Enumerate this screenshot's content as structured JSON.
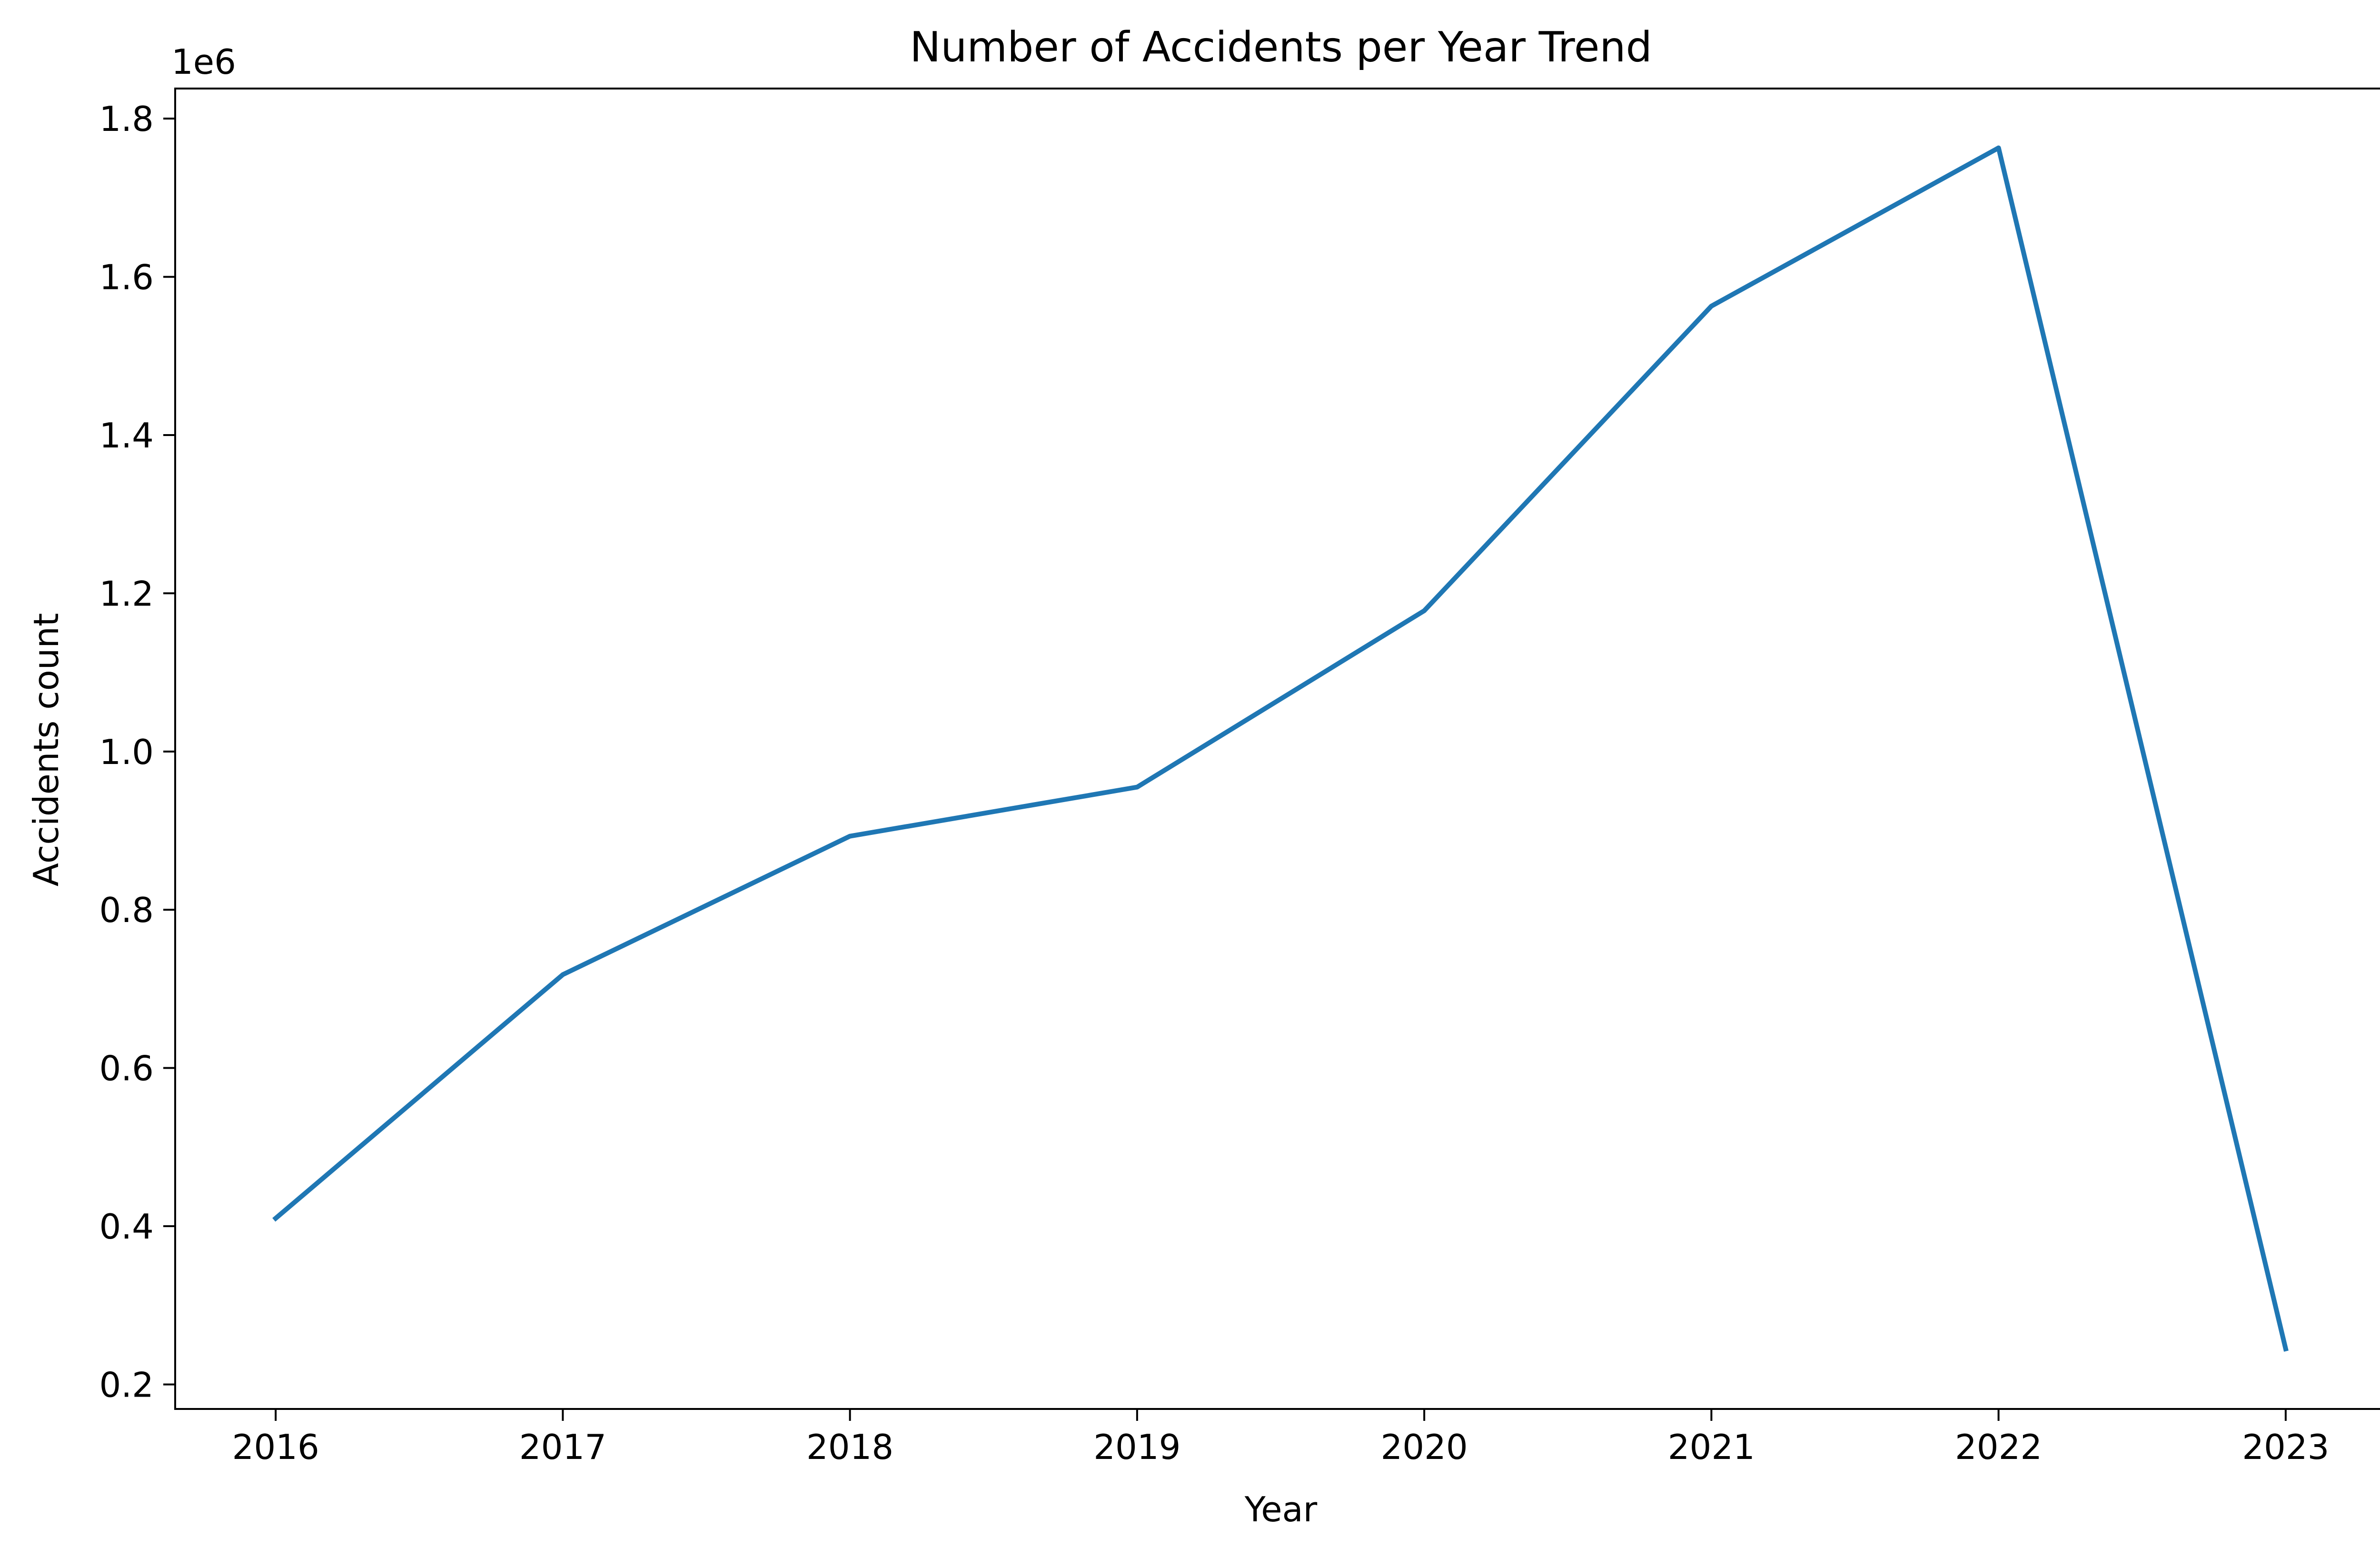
{
  "chart_data": {
    "type": "line",
    "title": "Number of Accidents per Year Trend",
    "xlabel": "Year",
    "ylabel": "Accidents count",
    "y_offset_label": "1e6",
    "x": [
      2016,
      2017,
      2018,
      2019,
      2020,
      2021,
      2022,
      2023
    ],
    "series": [
      {
        "values": [
          410000,
          718000,
          893000,
          955000,
          1178000,
          1563000,
          1763000,
          245000
        ],
        "color": "#1f77b4"
      }
    ],
    "x_ticks": [
      "2016",
      "2017",
      "2018",
      "2019",
      "2020",
      "2021",
      "2022",
      "2023"
    ],
    "y_ticks": [
      {
        "value": 200000,
        "label": "0.2"
      },
      {
        "value": 400000,
        "label": "0.4"
      },
      {
        "value": 600000,
        "label": "0.6"
      },
      {
        "value": 800000,
        "label": "0.8"
      },
      {
        "value": 1000000,
        "label": "1.0"
      },
      {
        "value": 1200000,
        "label": "1.2"
      },
      {
        "value": 1400000,
        "label": "1.4"
      },
      {
        "value": 1600000,
        "label": "1.6"
      },
      {
        "value": 1800000,
        "label": "1.8"
      }
    ],
    "xlim": [
      2015.65,
      2023.35
    ],
    "ylim": [
      169000,
      1838000
    ],
    "grid": false,
    "legend": false
  }
}
